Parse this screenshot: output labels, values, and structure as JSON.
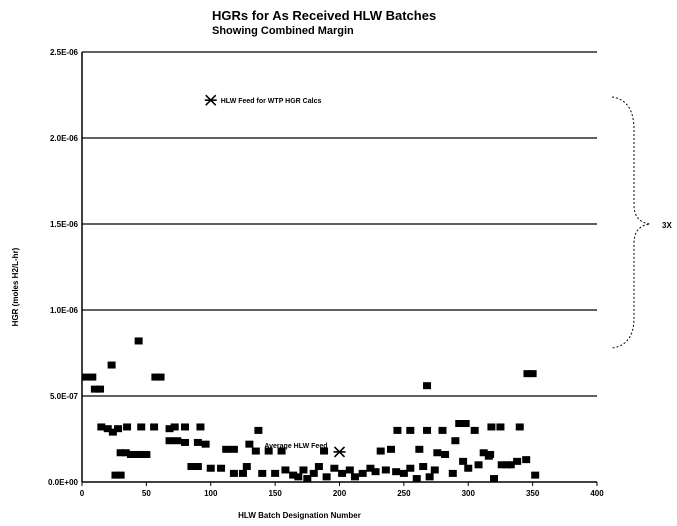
{
  "chart_data": {
    "type": "scatter",
    "title": "HGRs for As Received HLW Batches",
    "subtitle": "Showing Combined Margin",
    "xlabel": "HLW Batch Designation Number",
    "ylabel": "HGR (moles H2/L-hr)",
    "xlim": [
      0,
      400
    ],
    "ylim": [
      0,
      2.5e-06
    ],
    "x_ticks": [
      "0",
      "50",
      "100",
      "150",
      "200",
      "250",
      "300",
      "350",
      "400"
    ],
    "y_ticks": [
      "0.0E+00",
      "5.0E-07",
      "1.0E-06",
      "1.5E-06",
      "2.0E-06",
      "2.5E-06"
    ],
    "grid": "horizontal",
    "brace_label": "3X",
    "series": [
      {
        "marker": "square",
        "color": "#000000",
        "points": [
          [
            3,
            6.1e-07
          ],
          [
            8,
            6.1e-07
          ],
          [
            10,
            5.4e-07
          ],
          [
            14,
            5.4e-07
          ],
          [
            23,
            6.8e-07
          ],
          [
            44,
            8.2e-07
          ],
          [
            57,
            6.1e-07
          ],
          [
            61,
            6.1e-07
          ],
          [
            268,
            5.6e-07
          ],
          [
            346,
            6.3e-07
          ],
          [
            350,
            6.3e-07
          ],
          [
            15,
            3.2e-07
          ],
          [
            20,
            3.1e-07
          ],
          [
            24,
            2.9e-07
          ],
          [
            28,
            3.1e-07
          ],
          [
            35,
            3.2e-07
          ],
          [
            46,
            3.2e-07
          ],
          [
            56,
            3.2e-07
          ],
          [
            68,
            3.1e-07
          ],
          [
            72,
            3.2e-07
          ],
          [
            80,
            3.2e-07
          ],
          [
            92,
            3.2e-07
          ],
          [
            137,
            3e-07
          ],
          [
            245,
            3e-07
          ],
          [
            255,
            3e-07
          ],
          [
            268,
            3e-07
          ],
          [
            280,
            3e-07
          ],
          [
            293,
            3.4e-07
          ],
          [
            298,
            3.4e-07
          ],
          [
            305,
            3e-07
          ],
          [
            318,
            3.2e-07
          ],
          [
            325,
            3.2e-07
          ],
          [
            340,
            3.2e-07
          ],
          [
            30,
            1.7e-07
          ],
          [
            34,
            1.7e-07
          ],
          [
            38,
            1.6e-07
          ],
          [
            42,
            1.6e-07
          ],
          [
            46,
            1.6e-07
          ],
          [
            50,
            1.6e-07
          ],
          [
            68,
            2.4e-07
          ],
          [
            74,
            2.4e-07
          ],
          [
            80,
            2.3e-07
          ],
          [
            90,
            2.3e-07
          ],
          [
            96,
            2.2e-07
          ],
          [
            112,
            1.9e-07
          ],
          [
            118,
            1.9e-07
          ],
          [
            130,
            2.2e-07
          ],
          [
            135,
            1.8e-07
          ],
          [
            145,
            1.8e-07
          ],
          [
            155,
            1.8e-07
          ],
          [
            188,
            1.8e-07
          ],
          [
            232,
            1.8e-07
          ],
          [
            240,
            1.9e-07
          ],
          [
            262,
            1.9e-07
          ],
          [
            276,
            1.7e-07
          ],
          [
            282,
            1.6e-07
          ],
          [
            290,
            2.4e-07
          ],
          [
            296,
            1.2e-07
          ],
          [
            312,
            1.7e-07
          ],
          [
            317,
            1.6e-07
          ],
          [
            333,
            1e-07
          ],
          [
            338,
            1.2e-07
          ],
          [
            26,
            4e-08
          ],
          [
            30,
            4e-08
          ],
          [
            85,
            9e-08
          ],
          [
            90,
            9e-08
          ],
          [
            100,
            8e-08
          ],
          [
            108,
            8e-08
          ],
          [
            118,
            5e-08
          ],
          [
            125,
            5e-08
          ],
          [
            128,
            9e-08
          ],
          [
            140,
            5e-08
          ],
          [
            150,
            5e-08
          ],
          [
            158,
            7e-08
          ],
          [
            164,
            4e-08
          ],
          [
            168,
            3e-08
          ],
          [
            172,
            7e-08
          ],
          [
            175,
            2e-08
          ],
          [
            180,
            5e-08
          ],
          [
            184,
            9e-08
          ],
          [
            190,
            3e-08
          ],
          [
            196,
            8e-08
          ],
          [
            202,
            5e-08
          ],
          [
            208,
            7e-08
          ],
          [
            212,
            3e-08
          ],
          [
            218,
            5e-08
          ],
          [
            224,
            8e-08
          ],
          [
            228,
            6e-08
          ],
          [
            236,
            7e-08
          ],
          [
            244,
            6e-08
          ],
          [
            250,
            5e-08
          ],
          [
            255,
            8e-08
          ],
          [
            260,
            2e-08
          ],
          [
            265,
            9e-08
          ],
          [
            270,
            3e-08
          ],
          [
            274,
            7e-08
          ],
          [
            288,
            5e-08
          ],
          [
            300,
            8e-08
          ],
          [
            308,
            1e-07
          ],
          [
            316,
            1.5e-07
          ],
          [
            320,
            2e-08
          ],
          [
            326,
            1e-07
          ],
          [
            330,
            1e-07
          ],
          [
            345,
            1.3e-07
          ],
          [
            352,
            4e-08
          ]
        ]
      }
    ],
    "annotations": [
      {
        "text": "HLW Feed for WTP HGR Calcs",
        "x": 100,
        "y": 2.22e-06,
        "marker": "asterisk"
      },
      {
        "text": "Average HLW Feed",
        "x": 200,
        "y": 1.75e-07,
        "marker": "asterisk",
        "label_side": "left"
      }
    ]
  }
}
